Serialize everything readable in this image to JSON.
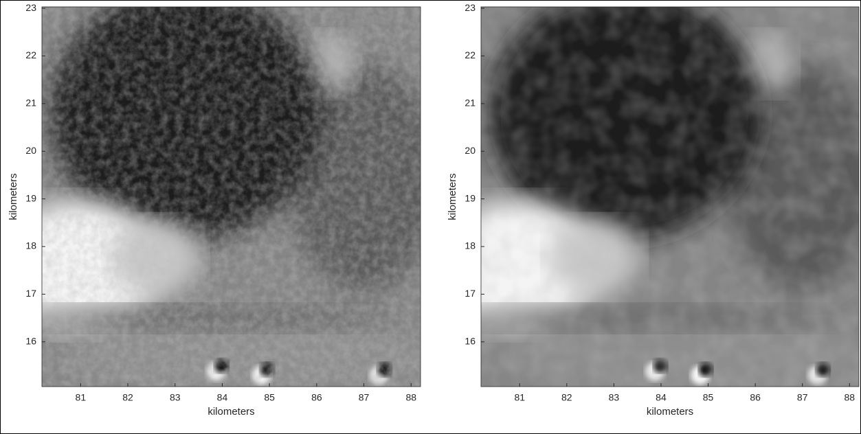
{
  "chart_data": [
    {
      "type": "image",
      "xlabel": "kilometers",
      "ylabel": "kilometers",
      "xlim": [
        80.18,
        88.2
      ],
      "ylim": [
        15.06,
        23.03
      ],
      "xticks": [
        81,
        82,
        83,
        84,
        85,
        86,
        87,
        88
      ],
      "yticks": [
        16,
        17,
        18,
        19,
        20,
        21,
        22,
        23
      ]
    },
    {
      "type": "image",
      "xlabel": "kilometers",
      "ylabel": "kilometers",
      "xlim": [
        80.18,
        88.2
      ],
      "ylim": [
        15.06,
        23.03
      ],
      "xticks": [
        81,
        82,
        83,
        84,
        85,
        86,
        87,
        88
      ],
      "yticks": [
        16,
        17,
        18,
        19,
        20,
        21,
        22,
        23
      ]
    }
  ]
}
